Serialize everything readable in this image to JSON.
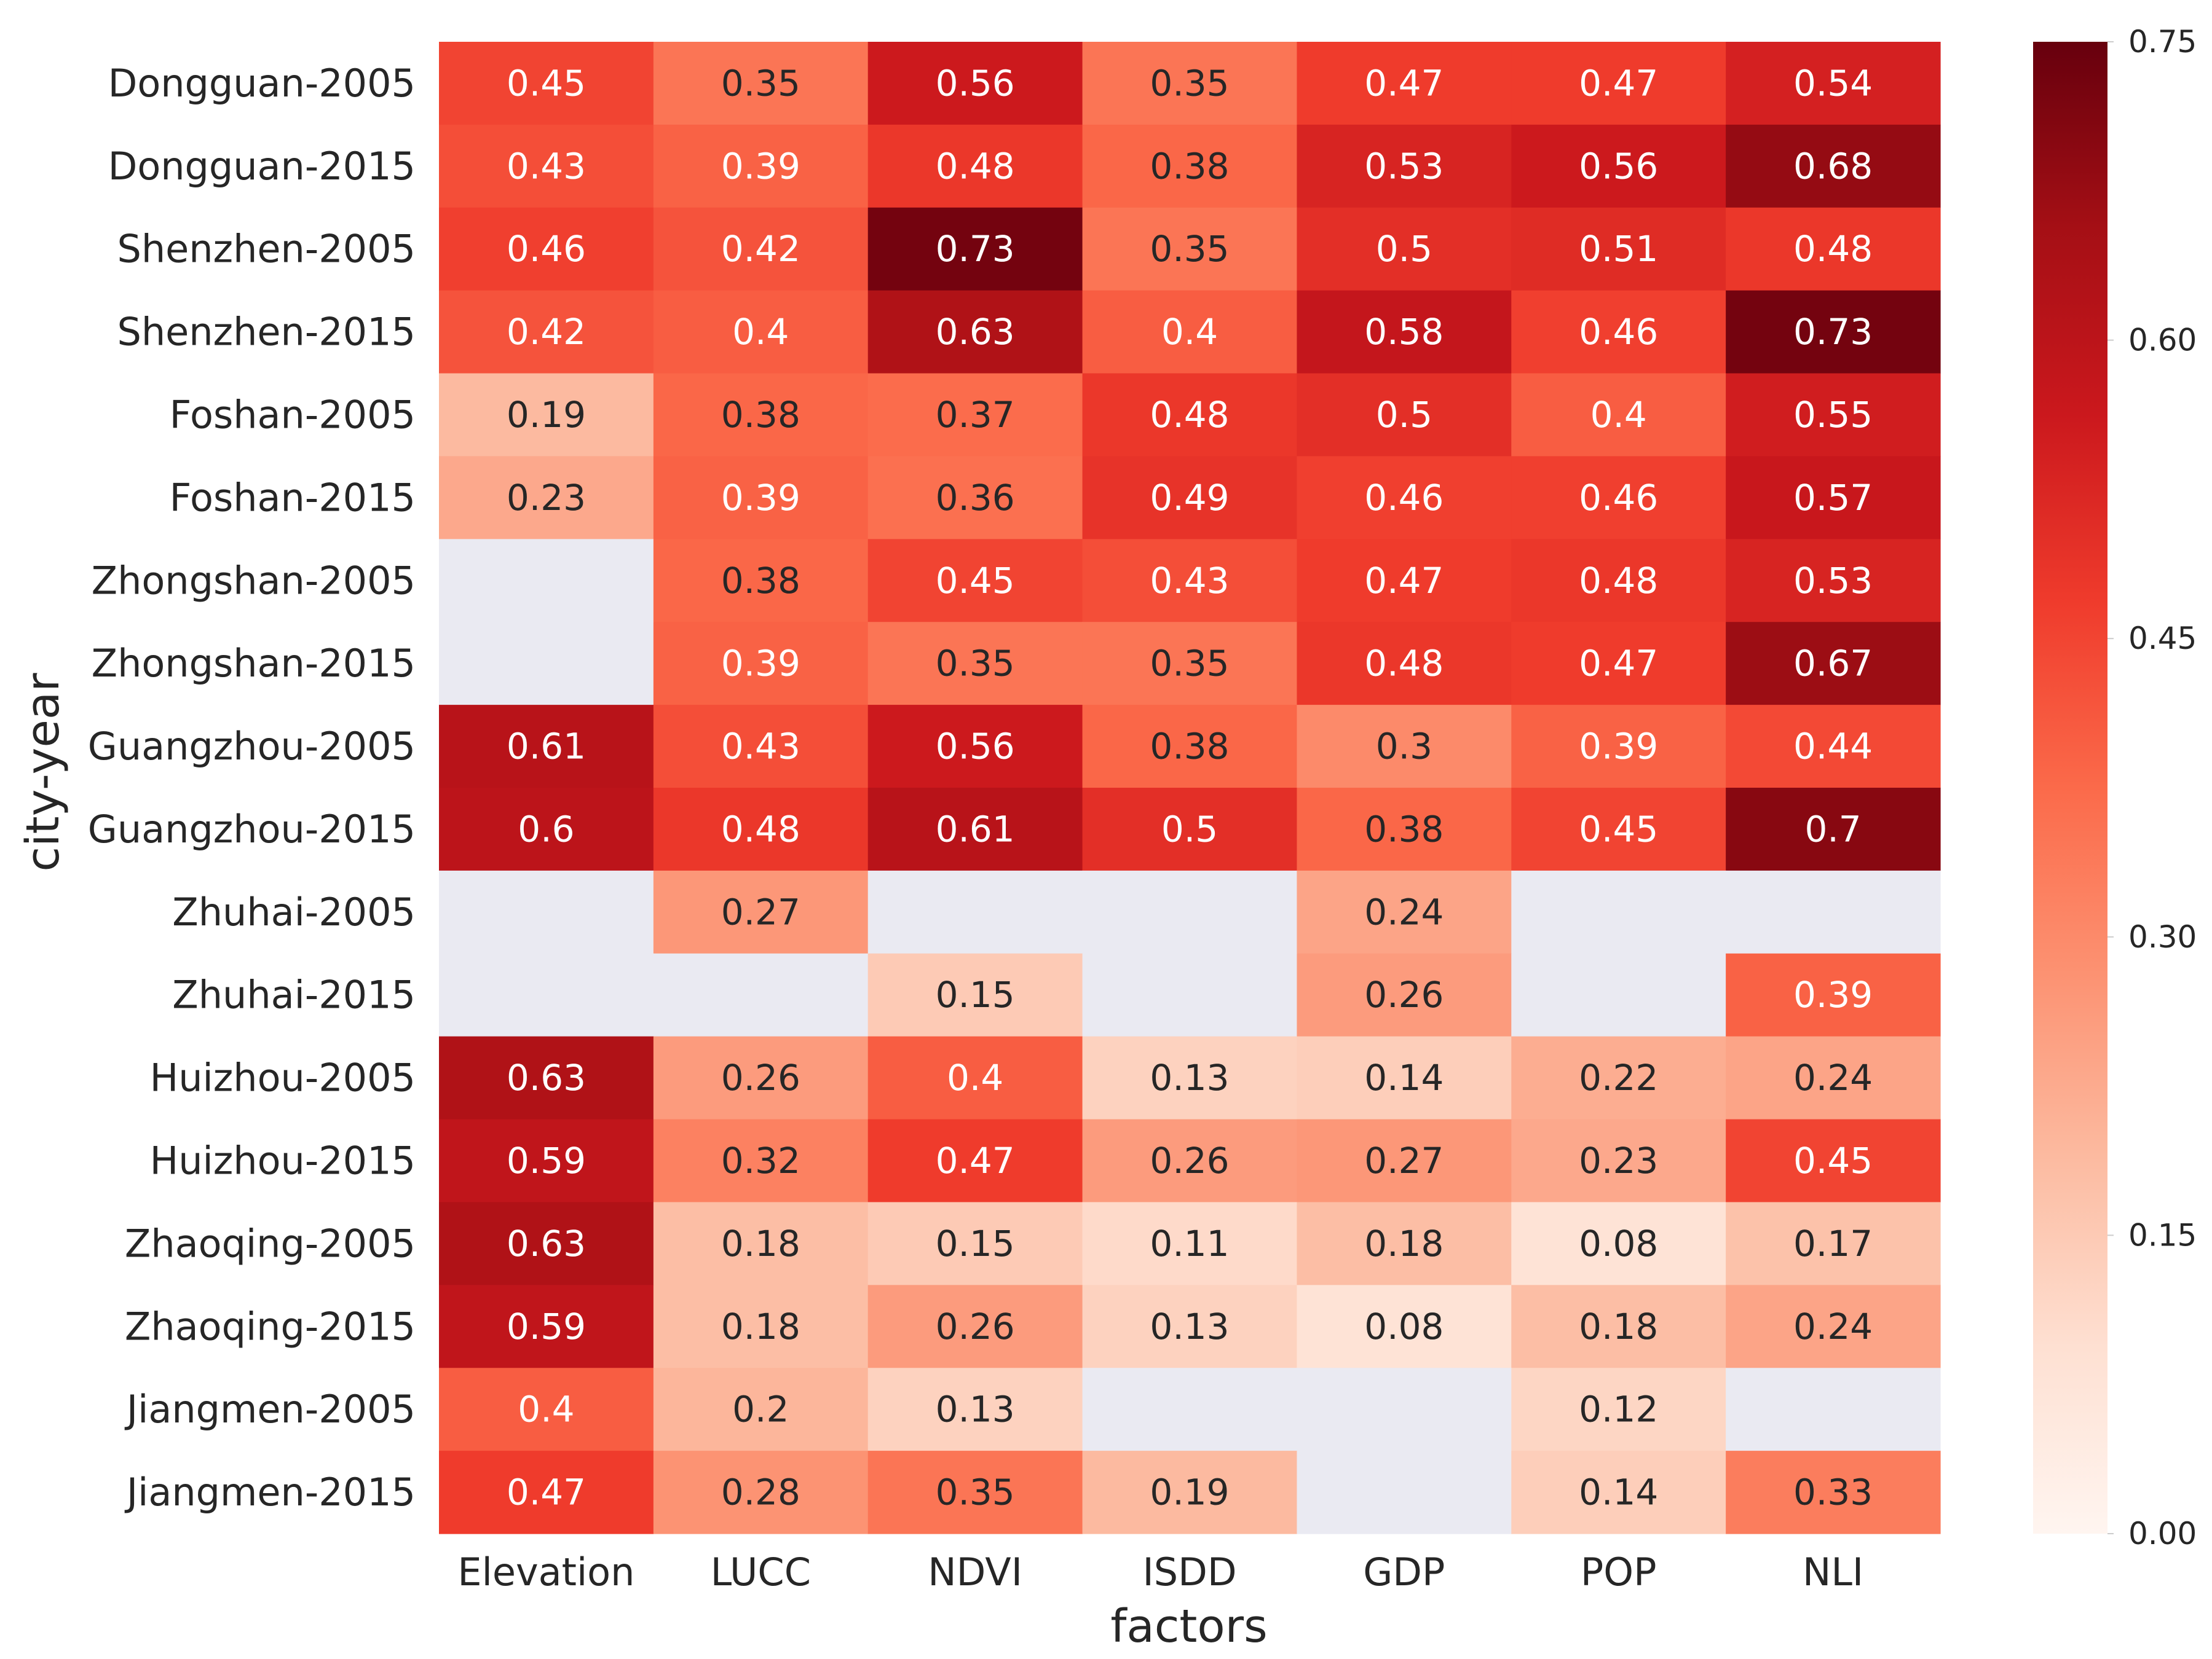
{
  "chart_data": {
    "type": "heatmap",
    "xlabel": "factors",
    "ylabel": "city-year",
    "columns": [
      "Elevation",
      "LUCC",
      "NDVI",
      "ISDD",
      "GDP",
      "POP",
      "NLI"
    ],
    "rows": [
      "Dongguan-2005",
      "Dongguan-2015",
      "Shenzhen-2005",
      "Shenzhen-2015",
      "Foshan-2005",
      "Foshan-2015",
      "Zhongshan-2005",
      "Zhongshan-2015",
      "Guangzhou-2005",
      "Guangzhou-2015",
      "Zhuhai-2005",
      "Zhuhai-2015",
      "Huizhou-2005",
      "Huizhou-2015",
      "Zhaoqing-2005",
      "Zhaoqing-2015",
      "Jiangmen-2005",
      "Jiangmen-2015"
    ],
    "values": [
      [
        0.45,
        0.35,
        0.56,
        0.35,
        0.47,
        0.47,
        0.54
      ],
      [
        0.43,
        0.39,
        0.48,
        0.38,
        0.53,
        0.56,
        0.68
      ],
      [
        0.46,
        0.42,
        0.73,
        0.35,
        0.5,
        0.51,
        0.48
      ],
      [
        0.42,
        0.4,
        0.63,
        0.4,
        0.58,
        0.46,
        0.73
      ],
      [
        0.19,
        0.38,
        0.37,
        0.48,
        0.5,
        0.4,
        0.55
      ],
      [
        0.23,
        0.39,
        0.36,
        0.49,
        0.46,
        0.46,
        0.57
      ],
      [
        null,
        0.38,
        0.45,
        0.43,
        0.47,
        0.48,
        0.53
      ],
      [
        null,
        0.39,
        0.35,
        0.35,
        0.48,
        0.47,
        0.67
      ],
      [
        0.61,
        0.43,
        0.56,
        0.38,
        0.3,
        0.39,
        0.44
      ],
      [
        0.6,
        0.48,
        0.61,
        0.5,
        0.38,
        0.45,
        0.7
      ],
      [
        null,
        0.27,
        null,
        null,
        0.24,
        null,
        null
      ],
      [
        null,
        null,
        0.15,
        null,
        0.26,
        null,
        0.39
      ],
      [
        0.63,
        0.26,
        0.4,
        0.13,
        0.14,
        0.22,
        0.24
      ],
      [
        0.59,
        0.32,
        0.47,
        0.26,
        0.27,
        0.23,
        0.45
      ],
      [
        0.63,
        0.18,
        0.15,
        0.11,
        0.18,
        0.08,
        0.17
      ],
      [
        0.59,
        0.18,
        0.26,
        0.13,
        0.08,
        0.18,
        0.24
      ],
      [
        0.4,
        0.2,
        0.13,
        null,
        null,
        0.12,
        null
      ],
      [
        0.47,
        0.28,
        0.35,
        0.19,
        null,
        0.14,
        0.33
      ]
    ],
    "vmin": 0.0,
    "vmax": 0.75,
    "colormap": "Reds",
    "missing_color": "#eaeaf2",
    "colorbar_ticks": [
      "0.00",
      "0.15",
      "0.30",
      "0.45",
      "0.60",
      "0.75"
    ],
    "colorbar_tick_values": [
      0.0,
      0.15,
      0.3,
      0.45,
      0.6,
      0.75
    ]
  }
}
